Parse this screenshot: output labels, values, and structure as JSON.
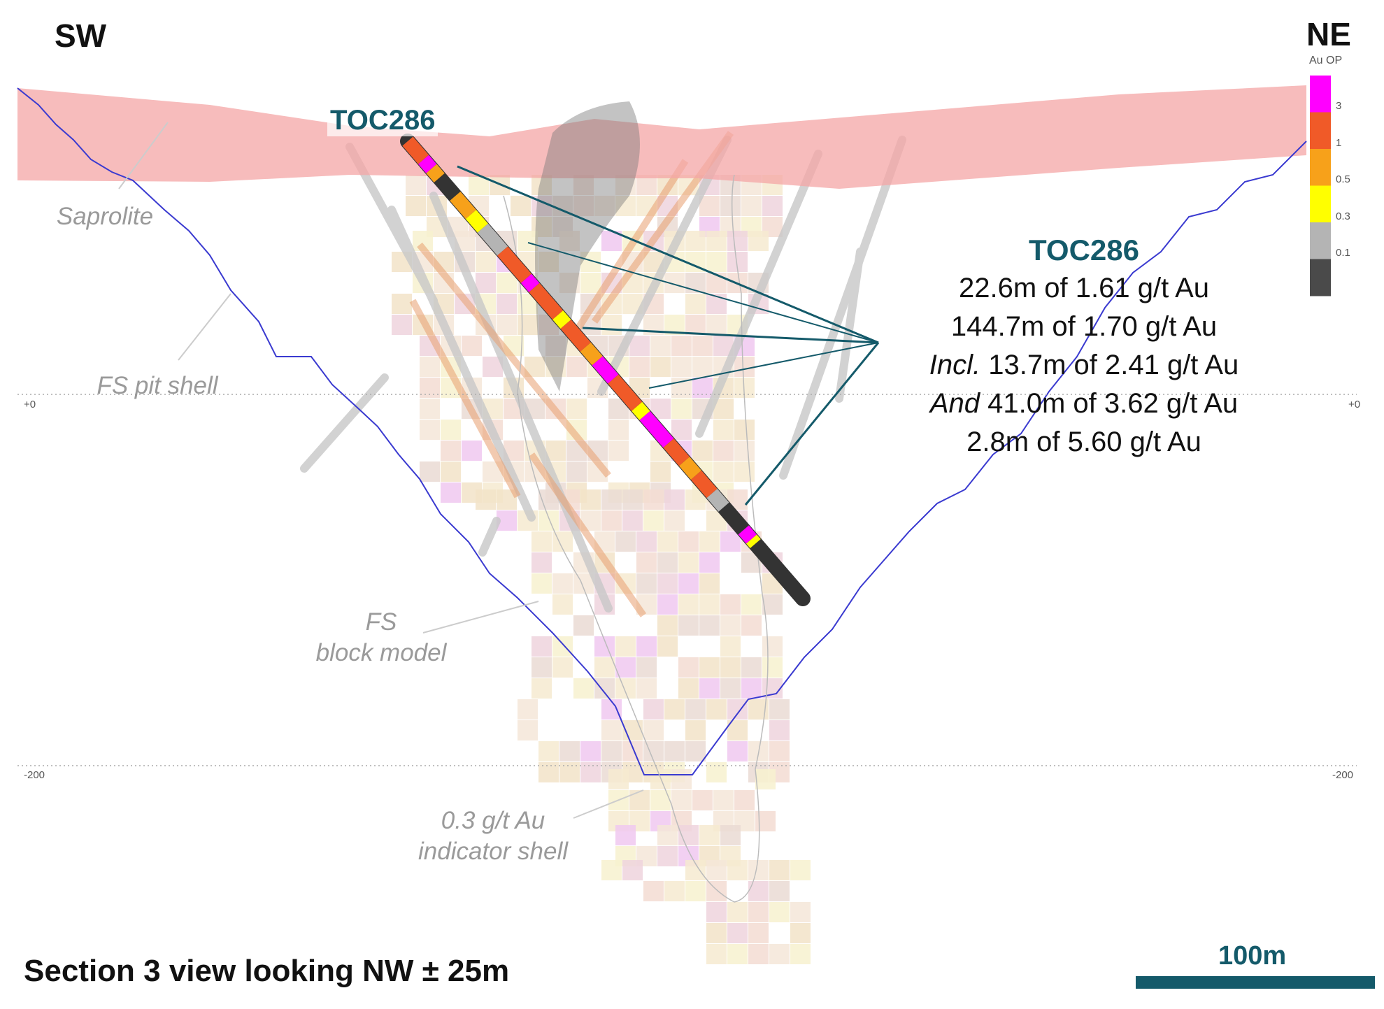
{
  "orientation": {
    "left": "SW",
    "right": "NE"
  },
  "drillhole": {
    "label": "TOC286",
    "color": "#145a6a"
  },
  "intercepts": {
    "title": "TOC286",
    "lines": [
      {
        "prefix": "",
        "text": "22.6m of 1.61 g/t Au"
      },
      {
        "prefix": "",
        "text": "144.7m of 1.70 g/t Au"
      },
      {
        "prefix": "Incl.",
        "text": " 13.7m of 2.41 g/t Au"
      },
      {
        "prefix": "And",
        "text": " 41.0m of 3.62 g/t Au"
      },
      {
        "prefix": "",
        "text": "2.8m of 5.60 g/t Au"
      }
    ]
  },
  "annotations": {
    "saprolite": "Saprolite",
    "pit_shell": "FS pit shell",
    "block_model_1": "FS",
    "block_model_2": "block model",
    "indicator_1": "0.3 g/t Au",
    "indicator_2": "indicator shell"
  },
  "elevation_labels": {
    "top": "+0",
    "bottom": "-200"
  },
  "legend": {
    "title": "Au OP",
    "bins": [
      {
        "color": "#ff00ff",
        "label": "3"
      },
      {
        "color": "#f05a28",
        "label": "1"
      },
      {
        "color": "#f7a11a",
        "label": "0.5"
      },
      {
        "color": "#ffff00",
        "label": "0.3"
      },
      {
        "color": "#b4b4b4",
        "label": "0.1"
      },
      {
        "color": "#4a4a4a",
        "label": ""
      }
    ]
  },
  "footer": {
    "section_title": "Section 3 view looking NW ± 25m",
    "scale_label": "100m"
  },
  "colors": {
    "saprolite": "#f4a6a6",
    "pit_shell": "#3a3ad0",
    "accent": "#145a6a"
  }
}
